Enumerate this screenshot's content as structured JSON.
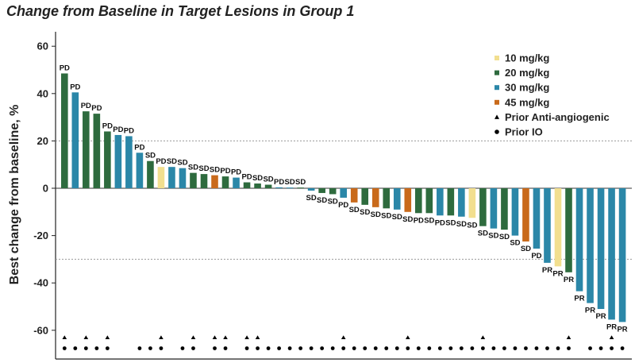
{
  "chart_data": {
    "type": "bar",
    "title": "Change from Baseline in Target Lesions in Group 1",
    "ylabel": "Best change from baseline, %",
    "xlabel": "",
    "ylim": [
      -70,
      63
    ],
    "yticks": [
      60,
      40,
      20,
      0,
      -20,
      -40,
      -60
    ],
    "reference_lines": [
      20,
      -30
    ],
    "grid": false,
    "legend_position": "top-right",
    "colors": {
      "10 mg/kg": "#f2df8f",
      "20 mg/kg": "#2e6b3e",
      "30 mg/kg": "#2b87a8",
      "45 mg/kg": "#c96a1b"
    },
    "legend": [
      {
        "label": "10 mg/kg",
        "kind": "swatch",
        "group": "10 mg/kg"
      },
      {
        "label": "20 mg/kg",
        "kind": "swatch",
        "group": "20 mg/kg"
      },
      {
        "label": "30 mg/kg",
        "kind": "swatch",
        "group": "30 mg/kg"
      },
      {
        "label": "45 mg/kg",
        "kind": "swatch",
        "group": "45 mg/kg"
      },
      {
        "label": "Prior Anti-angiogenic",
        "kind": "triangle"
      },
      {
        "label": "Prior IO",
        "kind": "dot"
      }
    ],
    "bars": [
      {
        "value": 48.5,
        "group": "20 mg/kg",
        "label": "PD",
        "anti": true,
        "io": true
      },
      {
        "value": 40.5,
        "group": "30 mg/kg",
        "label": "PD",
        "anti": false,
        "io": true
      },
      {
        "value": 32.5,
        "group": "20 mg/kg",
        "label": "PD",
        "anti": true,
        "io": true
      },
      {
        "value": 31.5,
        "group": "20 mg/kg",
        "label": "PD",
        "anti": false,
        "io": true
      },
      {
        "value": 24,
        "group": "20 mg/kg",
        "label": "PD",
        "anti": true,
        "io": true
      },
      {
        "value": 22.5,
        "group": "30 mg/kg",
        "label": "PD",
        "anti": false,
        "io": false
      },
      {
        "value": 22,
        "group": "30 mg/kg",
        "label": "PD",
        "anti": false,
        "io": false
      },
      {
        "value": 15,
        "group": "30 mg/kg",
        "label": "PD",
        "anti": false,
        "io": true
      },
      {
        "value": 11.5,
        "group": "20 mg/kg",
        "label": "SD",
        "anti": false,
        "io": true
      },
      {
        "value": 9,
        "group": "10 mg/kg",
        "label": "PD",
        "anti": true,
        "io": true
      },
      {
        "value": 9,
        "group": "30 mg/kg",
        "label": "SD",
        "anti": false,
        "io": false
      },
      {
        "value": 8.5,
        "group": "30 mg/kg",
        "label": "SD",
        "anti": false,
        "io": true
      },
      {
        "value": 6.5,
        "group": "20 mg/kg",
        "label": "SD",
        "anti": true,
        "io": true
      },
      {
        "value": 6,
        "group": "20 mg/kg",
        "label": "SD",
        "anti": false,
        "io": false
      },
      {
        "value": 5.5,
        "group": "45 mg/kg",
        "label": "SD",
        "anti": true,
        "io": true
      },
      {
        "value": 5,
        "group": "20 mg/kg",
        "label": "PD",
        "anti": true,
        "io": true
      },
      {
        "value": 4.5,
        "group": "30 mg/kg",
        "label": "PD",
        "anti": false,
        "io": false
      },
      {
        "value": 2.5,
        "group": "20 mg/kg",
        "label": "PD",
        "anti": true,
        "io": true
      },
      {
        "value": 2,
        "group": "20 mg/kg",
        "label": "SD",
        "anti": true,
        "io": true
      },
      {
        "value": 1.5,
        "group": "20 mg/kg",
        "label": "SD",
        "anti": false,
        "io": true
      },
      {
        "value": 0.4,
        "group": "30 mg/kg",
        "label": "PD",
        "anti": false,
        "io": true
      },
      {
        "value": 0.3,
        "group": "30 mg/kg",
        "label": "SD",
        "anti": false,
        "io": true
      },
      {
        "value": 0.3,
        "group": "20 mg/kg",
        "label": "SD",
        "anti": false,
        "io": true
      },
      {
        "value": -1,
        "group": "30 mg/kg",
        "label": "SD",
        "anti": false,
        "io": true
      },
      {
        "value": -2,
        "group": "20 mg/kg",
        "label": "SD",
        "anti": false,
        "io": true
      },
      {
        "value": -2.5,
        "group": "20 mg/kg",
        "label": "SD",
        "anti": false,
        "io": true
      },
      {
        "value": -4,
        "group": "30 mg/kg",
        "label": "PD",
        "anti": true,
        "io": true
      },
      {
        "value": -6,
        "group": "45 mg/kg",
        "label": "SD",
        "anti": false,
        "io": true
      },
      {
        "value": -7,
        "group": "20 mg/kg",
        "label": "SD",
        "anti": false,
        "io": true
      },
      {
        "value": -8,
        "group": "45 mg/kg",
        "label": "SD",
        "anti": false,
        "io": true
      },
      {
        "value": -8.5,
        "group": "20 mg/kg",
        "label": "SD",
        "anti": false,
        "io": true
      },
      {
        "value": -9,
        "group": "30 mg/kg",
        "label": "SD",
        "anti": false,
        "io": true
      },
      {
        "value": -10,
        "group": "45 mg/kg",
        "label": "SD",
        "anti": true,
        "io": true
      },
      {
        "value": -10.5,
        "group": "20 mg/kg",
        "label": "PD",
        "anti": false,
        "io": true
      },
      {
        "value": -10.5,
        "group": "20 mg/kg",
        "label": "SD",
        "anti": false,
        "io": true
      },
      {
        "value": -11.5,
        "group": "30 mg/kg",
        "label": "PD",
        "anti": false,
        "io": true
      },
      {
        "value": -11.5,
        "group": "20 mg/kg",
        "label": "SD",
        "anti": false,
        "io": true
      },
      {
        "value": -12,
        "group": "30 mg/kg",
        "label": "SD",
        "anti": false,
        "io": true
      },
      {
        "value": -12.5,
        "group": "10 mg/kg",
        "label": "SD",
        "anti": false,
        "io": true
      },
      {
        "value": -16,
        "group": "20 mg/kg",
        "label": "SD",
        "anti": true,
        "io": true
      },
      {
        "value": -17,
        "group": "30 mg/kg",
        "label": "SD",
        "anti": false,
        "io": true
      },
      {
        "value": -17.5,
        "group": "20 mg/kg",
        "label": "SD",
        "anti": false,
        "io": true
      },
      {
        "value": -20,
        "group": "30 mg/kg",
        "label": "SD",
        "anti": false,
        "io": true
      },
      {
        "value": -22.5,
        "group": "45 mg/kg",
        "label": "SD",
        "anti": false,
        "io": true
      },
      {
        "value": -25.5,
        "group": "30 mg/kg",
        "label": "PD",
        "anti": false,
        "io": true
      },
      {
        "value": -31.5,
        "group": "30 mg/kg",
        "label": "PR",
        "anti": false,
        "io": true
      },
      {
        "value": -33,
        "group": "10 mg/kg",
        "label": "PR",
        "anti": false,
        "io": true
      },
      {
        "value": -35.5,
        "group": "20 mg/kg",
        "label": "PR",
        "anti": true,
        "io": true
      },
      {
        "value": -43.5,
        "group": "30 mg/kg",
        "label": "PR",
        "anti": false,
        "io": false
      },
      {
        "value": -48.5,
        "group": "30 mg/kg",
        "label": "PR",
        "anti": false,
        "io": true
      },
      {
        "value": -51,
        "group": "30 mg/kg",
        "label": "PR",
        "anti": false,
        "io": true
      },
      {
        "value": -55.5,
        "group": "30 mg/kg",
        "label": "PR",
        "anti": true,
        "io": true
      },
      {
        "value": -56.5,
        "group": "30 mg/kg",
        "label": "PR",
        "anti": false,
        "io": true
      }
    ]
  }
}
